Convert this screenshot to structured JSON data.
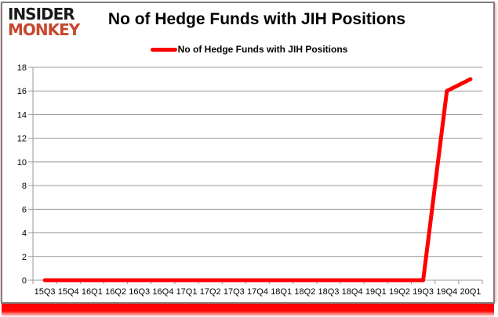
{
  "logo": {
    "line1": "INSIDER",
    "line2": "MONKEY"
  },
  "header": {
    "title": "No of Hedge Funds with JIH Positions"
  },
  "legend": {
    "label": "No of Hedge Funds with JIH Positions"
  },
  "colors": {
    "series": "#fe0000",
    "grid": "#9a9a9a",
    "axis": "#9a9a9a",
    "tick_text": "#000000",
    "logo_black": "#1a1a1a",
    "logo_red": "#c7482f",
    "frame_border": "#7f7f7f",
    "bottom_glow": "#ff0000"
  },
  "chart_data": {
    "type": "line",
    "title": "No of Hedge Funds with JIH Positions",
    "categories": [
      "15Q3",
      "15Q4",
      "16Q1",
      "16Q2",
      "16Q3",
      "16Q4",
      "17Q1",
      "17Q2",
      "17Q3",
      "17Q4",
      "18Q1",
      "18Q2",
      "18Q3",
      "18Q4",
      "19Q1",
      "19Q2",
      "19Q3",
      "19Q4",
      "20Q1"
    ],
    "series": [
      {
        "name": "No of Hedge Funds with JIH Positions",
        "color": "#fe0000",
        "values": [
          0,
          0,
          0,
          0,
          0,
          0,
          0,
          0,
          0,
          0,
          0,
          0,
          0,
          0,
          0,
          0,
          0,
          16,
          17
        ]
      }
    ],
    "xlabel": "",
    "ylabel": "",
    "ylim": [
      0,
      18
    ],
    "ytick_step": 2,
    "grid": true,
    "legend_position": "top"
  }
}
